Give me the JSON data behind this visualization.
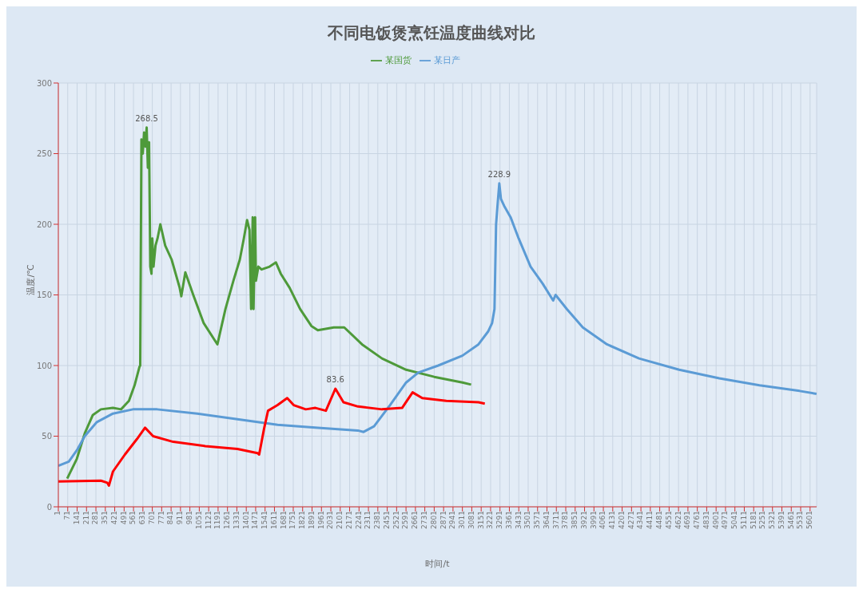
{
  "chart_data": {
    "type": "line",
    "title": "不同电饭煲烹饪温度曲线对比",
    "xlabel": "时间/t",
    "ylabel": "温度/℃",
    "xlim": [
      1,
      5650
    ],
    "ylim": [
      0,
      300
    ],
    "yticks": [
      0,
      50,
      100,
      150,
      200,
      250,
      300
    ],
    "xticks": [
      1,
      71,
      141,
      211,
      281,
      351,
      421,
      491,
      561,
      631,
      701,
      771,
      841,
      911,
      981,
      1051,
      1121,
      1191,
      1261,
      1331,
      1401,
      1471,
      1541,
      1611,
      1681,
      1751,
      1821,
      1891,
      1961,
      2031,
      2101,
      2171,
      2241,
      2311,
      2381,
      2451,
      2521,
      2591,
      2661,
      2731,
      2801,
      2871,
      2941,
      3011,
      3081,
      3151,
      3221,
      3291,
      3361,
      3431,
      3501,
      3571,
      3641,
      3711,
      3781,
      3851,
      3921,
      3991,
      4061,
      4131,
      4201,
      4271,
      4341,
      4411,
      4481,
      4551,
      4621,
      4691,
      4761,
      4831,
      4901,
      4971,
      5041,
      5111,
      5181,
      5251,
      5321,
      5391,
      5461,
      5531,
      5601
    ],
    "grid": true,
    "legend": "top",
    "marker": "none",
    "line_style": "solid",
    "series": [
      {
        "name": "某国货",
        "color": "#4e9a3a",
        "x": [
          67,
          139,
          198,
          258,
          318,
          408,
          468,
          527,
          569,
          605,
          611,
          620,
          630,
          640,
          650,
          659,
          668,
          677,
          686,
          695,
          701,
          710,
          725,
          740,
          761,
          797,
          845,
          905,
          917,
          947,
          1006,
          1084,
          1186,
          1246,
          1305,
          1353,
          1383,
          1407,
          1425,
          1437,
          1449,
          1455,
          1467,
          1473,
          1491,
          1515,
          1575,
          1622,
          1658,
          1724,
          1802,
          1886,
          1934,
          2053,
          2131,
          2263,
          2412,
          2592,
          2801,
          3011,
          3076
        ],
        "values": [
          20,
          34,
          52,
          65,
          69,
          70,
          69,
          75,
          86,
          99,
          100,
          260,
          250,
          265,
          255,
          268.5,
          240,
          258,
          170,
          165,
          190,
          170,
          185,
          190,
          200,
          185,
          175,
          155,
          149,
          166,
          150,
          130,
          115,
          140,
          160,
          175,
          190,
          203,
          196,
          140,
          205,
          140,
          205,
          160,
          170,
          168,
          170,
          173,
          165,
          155,
          140,
          128,
          125,
          127,
          127,
          115,
          105,
          97,
          92,
          88,
          86.5
        ]
      },
      {
        "name": "某日产",
        "color": "#5b9bd5",
        "x": [
          1,
          79,
          139,
          198,
          288,
          408,
          557,
          737,
          1036,
          1335,
          1634,
          1934,
          2233,
          2275,
          2353,
          2472,
          2592,
          2682,
          2831,
          3011,
          3131,
          3202,
          3232,
          3250,
          3262,
          3274,
          3286,
          3298,
          3322,
          3370,
          3430,
          3519,
          3609,
          3687,
          3705,
          3789,
          3908,
          4088,
          4327,
          4626,
          4925,
          5224,
          5523,
          5649
        ],
        "values": [
          29,
          32,
          40,
          50,
          60,
          66,
          69,
          69,
          66,
          62,
          58,
          56,
          54,
          53,
          57,
          72,
          88,
          95,
          100,
          107,
          115,
          124,
          130,
          140,
          200,
          215,
          228.9,
          218,
          213,
          205,
          190,
          170,
          158,
          146,
          150,
          140,
          127,
          115,
          105,
          97,
          91,
          86,
          82,
          80
        ]
      },
      {
        "color": "#ff0000",
        "x": [
          1,
          318,
          366,
          378,
          408,
          497,
          587,
          647,
          707,
          857,
          1096,
          1335,
          1485,
          1497,
          1533,
          1563,
          1634,
          1706,
          1754,
          1844,
          1916,
          1994,
          2065,
          2125,
          2233,
          2412,
          2562,
          2640,
          2712,
          2891,
          3131,
          3178
        ],
        "values": [
          18,
          18.5,
          17,
          15,
          25,
          37,
          48,
          56,
          50,
          46,
          43,
          41,
          38,
          37,
          55,
          68,
          72,
          77,
          72,
          69,
          70,
          68,
          83.6,
          74,
          71,
          69,
          70,
          81,
          77,
          75,
          74,
          73
        ]
      }
    ],
    "annotations": [
      {
        "text": "268.5",
        "x": 659,
        "y": 268.5
      },
      {
        "text": "228.9",
        "x": 3286,
        "y": 228.9
      },
      {
        "text": "83.6",
        "x": 2065,
        "y": 83.6
      }
    ]
  }
}
